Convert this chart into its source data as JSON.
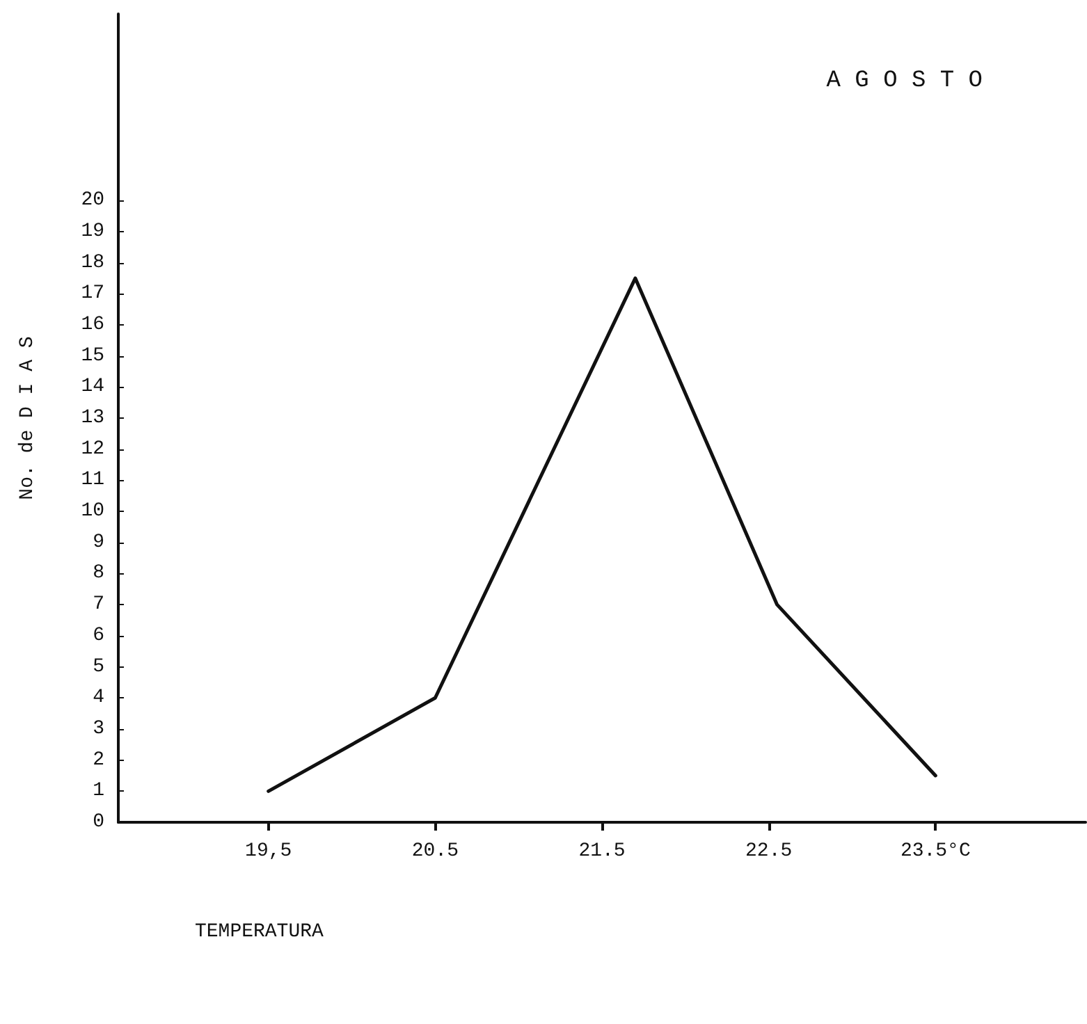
{
  "chart_data": {
    "type": "line",
    "title": "A G O S T O",
    "xlabel": "TEMPERATURA",
    "ylabel": "No. de D I A S",
    "x": [
      19.5,
      20.5,
      21.7,
      22.55,
      23.5
    ],
    "series": [
      {
        "color": "#111111",
        "values": [
          1,
          4,
          17.5,
          7,
          1.5
        ]
      }
    ],
    "xlim": [
      18.6,
      24.4
    ],
    "xticks": [
      {
        "value": 19.5,
        "label": "19,5"
      },
      20.5,
      21.5,
      22.5,
      {
        "value": 23.5,
        "label": "23.5°C"
      }
    ],
    "ylim": [
      0,
      26
    ],
    "yticks": [
      0,
      1,
      2,
      3,
      4,
      5,
      6,
      7,
      8,
      9,
      10,
      11,
      12,
      13,
      14,
      15,
      16,
      17,
      18,
      19,
      20
    ],
    "grid": false,
    "marker": "none",
    "line_style": "solid"
  }
}
